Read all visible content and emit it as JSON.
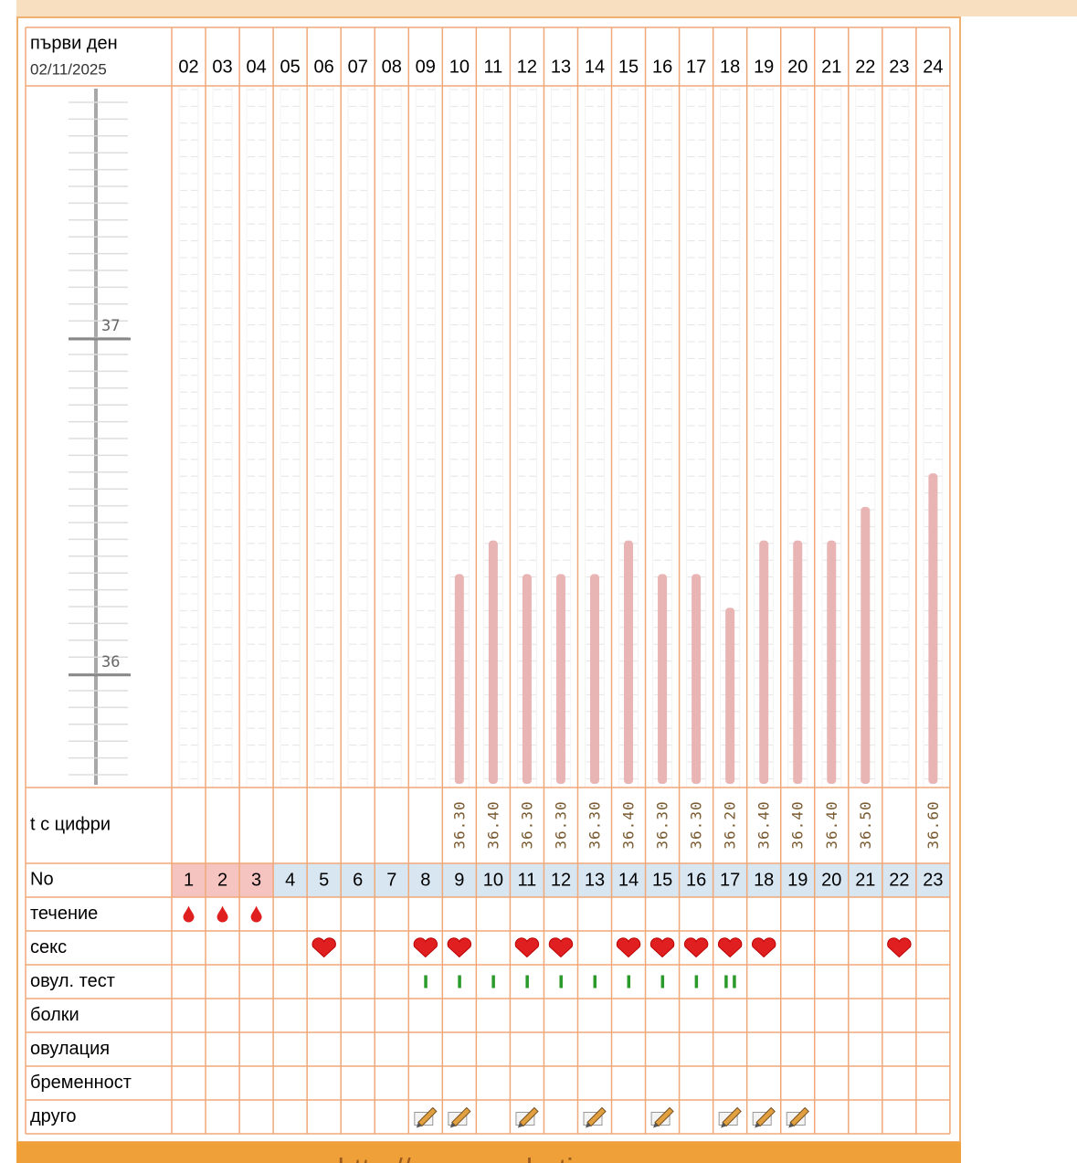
{
  "chart_data": {
    "type": "bar",
    "header_label": "първи ден",
    "start_date": "02/11/2025",
    "categories": [
      "02",
      "03",
      "04",
      "05",
      "06",
      "07",
      "08",
      "09",
      "10",
      "11",
      "12",
      "13",
      "14",
      "15",
      "16",
      "17",
      "18",
      "19",
      "20",
      "21",
      "22",
      "23",
      "24"
    ],
    "values": [
      null,
      null,
      null,
      null,
      null,
      null,
      null,
      null,
      36.3,
      36.4,
      36.3,
      36.3,
      36.3,
      36.4,
      36.3,
      36.3,
      36.2,
      36.4,
      36.4,
      36.4,
      36.5,
      null,
      36.6
    ],
    "value_labels": [
      null,
      null,
      null,
      null,
      null,
      null,
      null,
      null,
      "36.30",
      "36.40",
      "36.30",
      "36.30",
      "36.30",
      "36.40",
      "36.30",
      "36.30",
      "36.20",
      "36.40",
      "36.40",
      "36.40",
      "36.50",
      null,
      "36.60"
    ],
    "color": "#e8b4b4",
    "ylim": [
      35.665,
      37.753
    ],
    "yticks": [
      36,
      37
    ],
    "temp_row_label": "t с цифри",
    "no_row_label": "No",
    "cycle_days": [
      1,
      2,
      3,
      4,
      5,
      6,
      7,
      8,
      9,
      10,
      11,
      12,
      13,
      14,
      15,
      16,
      17,
      18,
      19,
      20,
      21,
      22,
      23
    ],
    "rows": [
      {
        "label": "течение",
        "kind": "drop",
        "marks": [
          true,
          true,
          true,
          false,
          false,
          false,
          false,
          false,
          false,
          false,
          false,
          false,
          false,
          false,
          false,
          false,
          false,
          false,
          false,
          false,
          false,
          false,
          false
        ]
      },
      {
        "label": "секс",
        "kind": "heart",
        "marks": [
          false,
          false,
          false,
          false,
          true,
          false,
          false,
          true,
          true,
          false,
          true,
          true,
          false,
          true,
          true,
          true,
          true,
          true,
          false,
          false,
          false,
          true,
          false
        ]
      },
      {
        "label": "овул. тест",
        "kind": "strokes",
        "marks": [
          null,
          null,
          null,
          null,
          null,
          null,
          null,
          1,
          1,
          1,
          1,
          1,
          1,
          1,
          1,
          1,
          2,
          null,
          null,
          null,
          null,
          null,
          null
        ]
      },
      {
        "label": "болки",
        "kind": "none",
        "marks": []
      },
      {
        "label": "овулация",
        "kind": "none",
        "marks": []
      },
      {
        "label": "бременност",
        "kind": "none",
        "marks": []
      },
      {
        "label": "друго",
        "kind": "pencil",
        "marks": [
          false,
          false,
          false,
          false,
          false,
          false,
          false,
          true,
          true,
          false,
          true,
          false,
          true,
          false,
          true,
          false,
          true,
          true,
          true,
          false,
          false,
          false,
          false
        ]
      }
    ]
  },
  "footer": "http://www.zachatie.org"
}
